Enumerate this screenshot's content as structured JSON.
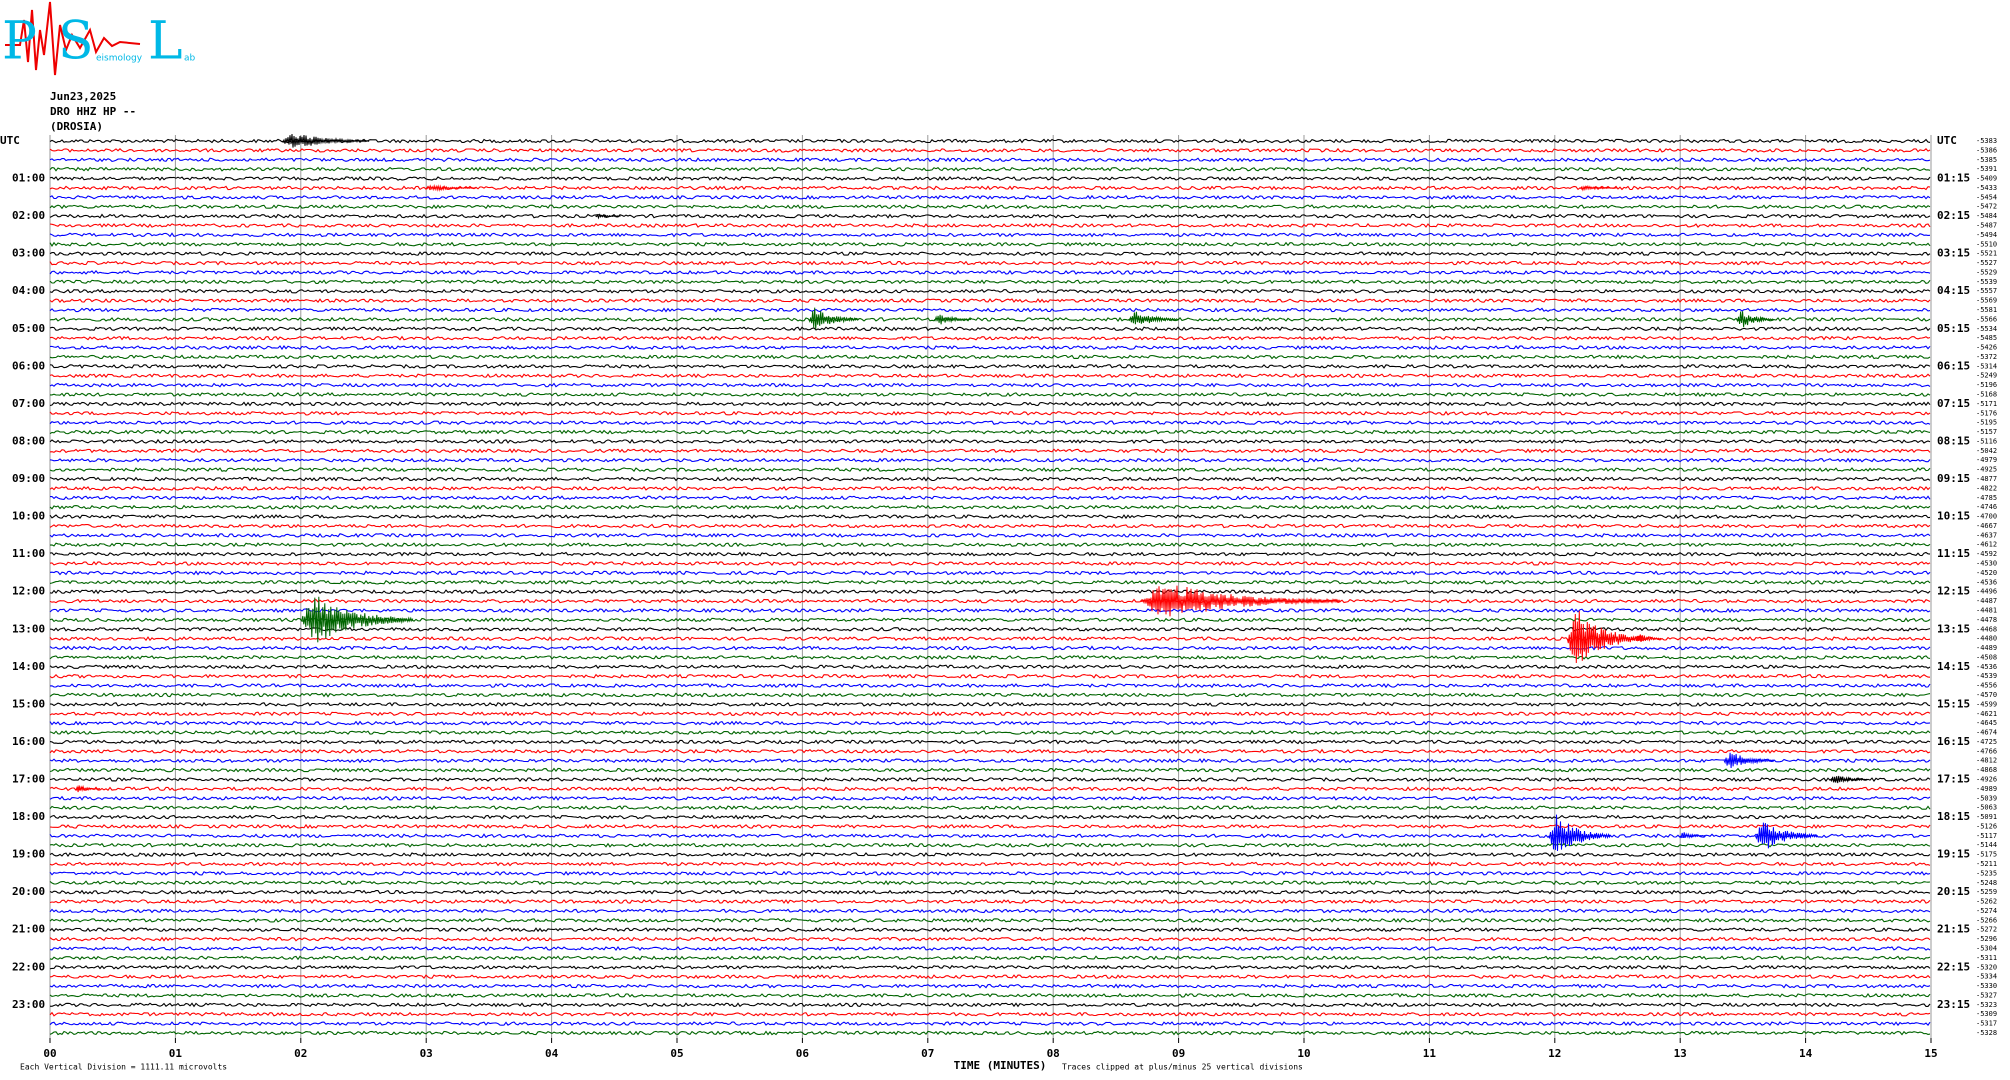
{
  "chart_data": {
    "type": "helicorder",
    "logo": {
      "letters": [
        "P",
        "S",
        "L"
      ],
      "words": [
        "eismology",
        "ab"
      ]
    },
    "header": [
      "Jun23,2025",
      "DRO HHZ HP --",
      "(DROSIA)"
    ],
    "left_labels": [
      "UTC",
      "01:00",
      "02:00",
      "03:00",
      "04:00",
      "05:00",
      "06:00",
      "07:00",
      "08:00",
      "09:00",
      "10:00",
      "11:00",
      "12:00",
      "13:00",
      "14:00",
      "15:00",
      "16:00",
      "17:00",
      "18:00",
      "19:00",
      "20:00",
      "21:00",
      "22:00",
      "23:00"
    ],
    "right_labels": [
      "UTC",
      "01:15",
      "02:15",
      "03:15",
      "04:15",
      "05:15",
      "06:15",
      "07:15",
      "08:15",
      "09:15",
      "10:15",
      "11:15",
      "12:15",
      "13:15",
      "14:15",
      "15:15",
      "16:15",
      "17:15",
      "18:15",
      "19:15",
      "20:15",
      "21:15",
      "22:15",
      "23:15"
    ],
    "trace_colors": [
      "#000000",
      "#ff0000",
      "#0000ff",
      "#006400"
    ],
    "offsets": [
      -5383,
      -5386,
      -5385,
      -5391,
      -5409,
      -5433,
      -5454,
      -5472,
      -5484,
      -5487,
      -5494,
      -5510,
      -5521,
      -5527,
      -5529,
      -5539,
      -5557,
      -5569,
      -5581,
      -5566,
      -5534,
      -5485,
      -5426,
      -5372,
      -5314,
      -5249,
      -5196,
      -5168,
      -5171,
      -5176,
      -5195,
      -5157,
      -5116,
      -5042,
      -4979,
      -4925,
      -4877,
      -4822,
      -4785,
      -4746,
      -4700,
      -4667,
      -4637,
      -4612,
      -4592,
      -4530,
      -4520,
      -4536,
      -4496,
      -4487,
      -4481,
      -4478,
      -4468,
      -4480,
      -4489,
      -4508,
      -4536,
      -4539,
      -4556,
      -4570,
      -4599,
      -4621,
      -4645,
      -4674,
      -4725,
      -4766,
      -4812,
      -4868,
      -4926,
      -4989,
      -5039,
      -5063,
      -5091,
      -5126,
      -5117,
      -5144,
      -5175,
      -5211,
      -5235,
      -5248,
      -5259,
      -5262,
      -5274,
      -5266,
      -5272,
      -5296,
      -5304,
      -5311,
      -5320,
      -5334,
      -5330,
      -5327,
      -5323,
      -5309,
      -5317,
      -5328
    ],
    "events": [
      {
        "trace": 0,
        "minute": 1.85,
        "duration": 0.7,
        "amplitude": 1.5
      },
      {
        "trace": 5,
        "minute": 3.0,
        "duration": 0.4,
        "amplitude": 0.5
      },
      {
        "trace": 5,
        "minute": 12.2,
        "duration": 0.3,
        "amplitude": 0.5
      },
      {
        "trace": 8,
        "minute": 4.35,
        "duration": 0.2,
        "amplitude": 0.4
      },
      {
        "trace": 19,
        "minute": 6.05,
        "duration": 0.4,
        "amplitude": 2
      },
      {
        "trace": 19,
        "minute": 7.05,
        "duration": 0.3,
        "amplitude": 1
      },
      {
        "trace": 19,
        "minute": 8.6,
        "duration": 0.4,
        "amplitude": 1.4
      },
      {
        "trace": 19,
        "minute": 13.45,
        "duration": 0.3,
        "amplitude": 1.5
      },
      {
        "trace": 51,
        "minute": 2.0,
        "duration": 0.9,
        "amplitude": 4
      },
      {
        "trace": 49,
        "minute": 8.7,
        "duration": 1.6,
        "amplitude": 3
      },
      {
        "trace": 53,
        "minute": 12.1,
        "duration": 0.6,
        "amplitude": 5
      },
      {
        "trace": 53,
        "minute": 12.65,
        "duration": 0.2,
        "amplitude": 1
      },
      {
        "trace": 66,
        "minute": 13.35,
        "duration": 0.4,
        "amplitude": 1.5
      },
      {
        "trace": 68,
        "minute": 14.2,
        "duration": 0.3,
        "amplitude": 0.8
      },
      {
        "trace": 69,
        "minute": 0.2,
        "duration": 0.2,
        "amplitude": 0.6
      },
      {
        "trace": 74,
        "minute": 11.95,
        "duration": 0.5,
        "amplitude": 3.5
      },
      {
        "trace": 74,
        "minute": 13.0,
        "duration": 0.2,
        "amplitude": 0.6
      },
      {
        "trace": 74,
        "minute": 13.6,
        "duration": 0.5,
        "amplitude": 2.5
      }
    ],
    "xlim": [
      0,
      15
    ],
    "xticks": [
      {
        "value": 0,
        "label": "00"
      },
      {
        "value": 1,
        "label": "01"
      },
      {
        "value": 2,
        "label": "02"
      },
      {
        "value": 3,
        "label": "03"
      },
      {
        "value": 4,
        "label": "04"
      },
      {
        "value": 5,
        "label": "05"
      },
      {
        "value": 6,
        "label": "06"
      },
      {
        "value": 7,
        "label": "07"
      },
      {
        "value": 8,
        "label": "08"
      },
      {
        "value": 9,
        "label": "09"
      },
      10,
      11,
      12,
      13,
      14,
      15
    ],
    "xlabel": "TIME (MINUTES)",
    "footer_left": "Each Vertical Division = 1111.11 microvolts",
    "footer_right": "Traces clipped at plus/minus 25 vertical divisions",
    "grid": true
  }
}
